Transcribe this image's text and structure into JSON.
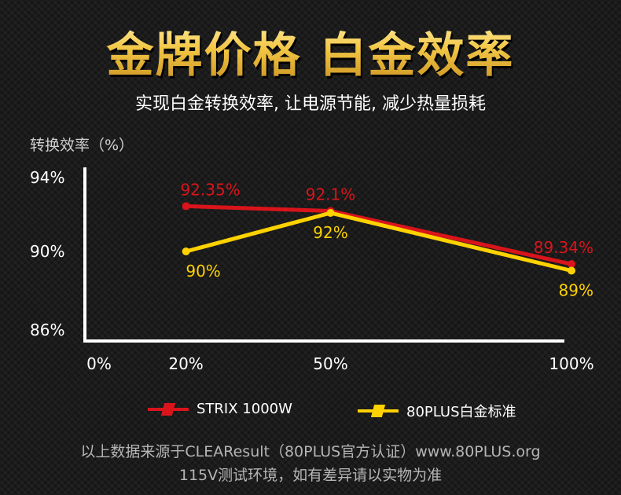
{
  "header": {
    "title": "金牌价格  白金效率",
    "subtitle": "实现白金转换效率, 让电源节能, 减少热量损耗"
  },
  "footer": {
    "line1": "以上数据来源于CLEAResult（80PLUS官方认证）www.80PLUS.org",
    "line2": "115V测试环境，如有差异请以实物为准"
  },
  "chart_data": {
    "type": "line",
    "title": "",
    "ylabel": "转换效率（%）",
    "xlabel": "",
    "x_tick_labels": [
      "0%",
      "20%",
      "50%",
      "100%"
    ],
    "x_ticks": [
      0,
      20,
      50,
      100
    ],
    "y_tick_labels": [
      "94%",
      "90%",
      "86%"
    ],
    "y_ticks": [
      94,
      90,
      86
    ],
    "ylim": [
      85,
      94.5
    ],
    "grid": false,
    "legend_position": "bottom",
    "x": [
      20,
      50,
      100
    ],
    "series": [
      {
        "name": "STRIX 1000W",
        "color": "#d9141b",
        "values": [
          92.35,
          92.1,
          89.34
        ],
        "labels": [
          "92.35%",
          "92.1%",
          "89.34%"
        ],
        "label_position": "above"
      },
      {
        "name": "80PLUS白金标准",
        "color": "#ffd200",
        "values": [
          90,
          92,
          89
        ],
        "labels": [
          "90%",
          "92%",
          "89%"
        ],
        "label_position": "below"
      }
    ]
  }
}
